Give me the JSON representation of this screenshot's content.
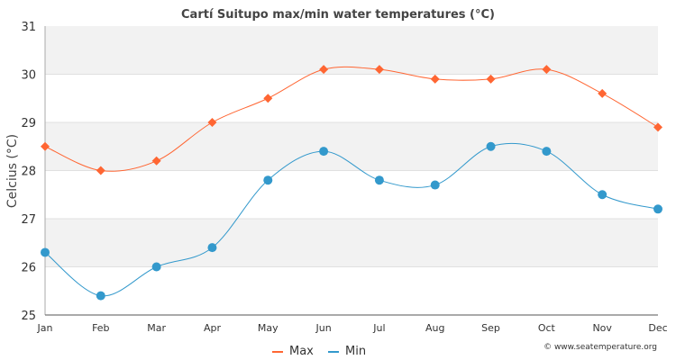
{
  "chart_data": {
    "type": "line",
    "title": "Cartí Suitupo max/min water temperatures (°C)",
    "xlabel": "",
    "ylabel": "Celcius (°C)",
    "categories": [
      "Jan",
      "Feb",
      "Mar",
      "Apr",
      "May",
      "Jun",
      "Jul",
      "Aug",
      "Sep",
      "Oct",
      "Nov",
      "Dec"
    ],
    "ylim": [
      25,
      31
    ],
    "yticks": [
      25,
      26,
      27,
      28,
      29,
      30,
      31
    ],
    "series": [
      {
        "name": "Max",
        "color": "#ff6633",
        "marker": "diamond",
        "values": [
          28.5,
          28.0,
          28.2,
          29.0,
          29.5,
          30.1,
          30.1,
          29.9,
          29.9,
          30.1,
          29.6,
          28.9
        ]
      },
      {
        "name": "Min",
        "color": "#3399cc",
        "marker": "circle",
        "values": [
          26.3,
          25.4,
          26.0,
          26.4,
          27.8,
          28.4,
          27.8,
          27.7,
          28.5,
          28.4,
          27.5,
          27.2
        ]
      }
    ],
    "legend": "bottom-center",
    "grid": true
  },
  "watermark": "© www.seatemperature.org"
}
